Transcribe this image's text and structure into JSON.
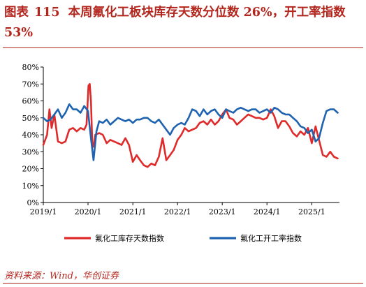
{
  "header": {
    "fig_label": "图表",
    "fig_number": "115",
    "title": "本周氟化工板块库存天数分位数 26%，开工率指数 53%"
  },
  "source": "资料来源：Wind，华创证券",
  "colors": {
    "brand": "#b3261e",
    "series_red": "#e02a2a",
    "series_blue": "#1f63b0"
  },
  "chart_data": {
    "type": "line",
    "title": "",
    "xlabel": "",
    "ylabel": "",
    "ylim": [
      0,
      80
    ],
    "xlim": [
      "2019-01-01",
      "2025-08-15"
    ],
    "y_ticks": [
      "0%",
      "10%",
      "20%",
      "30%",
      "40%",
      "50%",
      "60%",
      "70%",
      "80%"
    ],
    "x_ticks": [
      {
        "label": "2019/1",
        "date": "2019-01-01"
      },
      {
        "label": "2020/1",
        "date": "2020-01-01"
      },
      {
        "label": "2021/1",
        "date": "2021-01-01"
      },
      {
        "label": "2022/1",
        "date": "2022-01-01"
      },
      {
        "label": "2023/1",
        "date": "2023-01-01"
      },
      {
        "label": "2024/1",
        "date": "2024-01-01"
      },
      {
        "label": "2025/1",
        "date": "2025-01-01"
      }
    ],
    "grid": false,
    "legend_position": "bottom",
    "series": [
      {
        "name": "氟化工库存天数指数",
        "color": "#e02a2a",
        "points": [
          [
            "2019-01-01",
            34
          ],
          [
            "2019-02-01",
            40
          ],
          [
            "2019-02-20",
            55
          ],
          [
            "2019-03-10",
            44
          ],
          [
            "2019-04-01",
            52
          ],
          [
            "2019-05-01",
            36
          ],
          [
            "2019-06-01",
            35
          ],
          [
            "2019-07-01",
            36
          ],
          [
            "2019-08-01",
            43
          ],
          [
            "2019-09-01",
            44
          ],
          [
            "2019-10-01",
            42
          ],
          [
            "2019-11-01",
            44
          ],
          [
            "2019-12-01",
            43
          ],
          [
            "2019-12-20",
            46
          ],
          [
            "2020-01-05",
            69
          ],
          [
            "2020-01-15",
            70
          ],
          [
            "2020-01-25",
            60
          ],
          [
            "2020-02-05",
            35
          ],
          [
            "2020-02-15",
            33
          ],
          [
            "2020-03-01",
            40
          ],
          [
            "2020-04-01",
            41
          ],
          [
            "2020-05-01",
            40
          ],
          [
            "2020-06-01",
            35
          ],
          [
            "2020-07-01",
            37
          ],
          [
            "2020-08-01",
            36
          ],
          [
            "2020-09-01",
            35
          ],
          [
            "2020-10-01",
            34
          ],
          [
            "2020-11-01",
            38
          ],
          [
            "2020-12-01",
            34
          ],
          [
            "2021-01-01",
            24
          ],
          [
            "2021-02-01",
            28
          ],
          [
            "2021-03-01",
            25
          ],
          [
            "2021-04-01",
            22
          ],
          [
            "2021-05-01",
            21
          ],
          [
            "2021-06-01",
            23
          ],
          [
            "2021-07-01",
            22
          ],
          [
            "2021-08-01",
            27
          ],
          [
            "2021-09-01",
            38
          ],
          [
            "2021-10-01",
            25
          ],
          [
            "2021-11-01",
            28
          ],
          [
            "2021-12-01",
            31
          ],
          [
            "2022-01-01",
            37
          ],
          [
            "2022-02-01",
            40
          ],
          [
            "2022-03-01",
            44
          ],
          [
            "2022-04-01",
            42
          ],
          [
            "2022-05-01",
            43
          ],
          [
            "2022-06-01",
            44
          ],
          [
            "2022-07-01",
            47
          ],
          [
            "2022-08-01",
            48
          ],
          [
            "2022-09-01",
            46
          ],
          [
            "2022-10-01",
            49
          ],
          [
            "2022-11-01",
            46
          ],
          [
            "2022-12-01",
            48
          ],
          [
            "2023-01-01",
            52
          ],
          [
            "2023-02-01",
            55
          ],
          [
            "2023-03-01",
            50
          ],
          [
            "2023-04-01",
            49
          ],
          [
            "2023-05-01",
            46
          ],
          [
            "2023-06-01",
            48
          ],
          [
            "2023-07-01",
            50
          ],
          [
            "2023-08-01",
            52
          ],
          [
            "2023-09-01",
            51
          ],
          [
            "2023-10-01",
            50
          ],
          [
            "2023-11-01",
            50
          ],
          [
            "2023-12-01",
            49
          ],
          [
            "2024-01-01",
            50
          ],
          [
            "2024-02-01",
            55
          ],
          [
            "2024-03-01",
            51
          ],
          [
            "2024-04-01",
            44
          ],
          [
            "2024-05-01",
            48
          ],
          [
            "2024-06-01",
            48
          ],
          [
            "2024-07-01",
            45
          ],
          [
            "2024-08-01",
            41
          ],
          [
            "2024-09-01",
            39
          ],
          [
            "2024-10-01",
            42
          ],
          [
            "2024-11-01",
            40
          ],
          [
            "2024-12-01",
            44
          ],
          [
            "2025-01-01",
            35
          ],
          [
            "2025-02-01",
            45
          ],
          [
            "2025-03-01",
            37
          ],
          [
            "2025-04-01",
            28
          ],
          [
            "2025-05-01",
            27
          ],
          [
            "2025-06-01",
            30
          ],
          [
            "2025-07-01",
            27
          ],
          [
            "2025-08-01",
            26
          ]
        ]
      },
      {
        "name": "氟化工开工率指数",
        "color": "#1f63b0",
        "points": [
          [
            "2019-01-01",
            50
          ],
          [
            "2019-02-01",
            48
          ],
          [
            "2019-03-01",
            49
          ],
          [
            "2019-04-01",
            52
          ],
          [
            "2019-05-01",
            55
          ],
          [
            "2019-06-01",
            50
          ],
          [
            "2019-07-01",
            53
          ],
          [
            "2019-08-01",
            58
          ],
          [
            "2019-09-01",
            55
          ],
          [
            "2019-10-01",
            55
          ],
          [
            "2019-11-01",
            53
          ],
          [
            "2019-12-01",
            57
          ],
          [
            "2020-01-01",
            54
          ],
          [
            "2020-01-25",
            38
          ],
          [
            "2020-02-15",
            25
          ],
          [
            "2020-03-10",
            42
          ],
          [
            "2020-04-01",
            48
          ],
          [
            "2020-05-01",
            47
          ],
          [
            "2020-06-01",
            49
          ],
          [
            "2020-07-01",
            46
          ],
          [
            "2020-08-01",
            48
          ],
          [
            "2020-09-01",
            50
          ],
          [
            "2020-10-01",
            49
          ],
          [
            "2020-11-01",
            48
          ],
          [
            "2020-12-01",
            49
          ],
          [
            "2021-01-01",
            47
          ],
          [
            "2021-02-01",
            49
          ],
          [
            "2021-03-01",
            49
          ],
          [
            "2021-04-01",
            50
          ],
          [
            "2021-05-01",
            50
          ],
          [
            "2021-06-01",
            48
          ],
          [
            "2021-07-01",
            47
          ],
          [
            "2021-08-01",
            49
          ],
          [
            "2021-09-01",
            46
          ],
          [
            "2021-10-01",
            43
          ],
          [
            "2021-11-01",
            40
          ],
          [
            "2021-12-01",
            44
          ],
          [
            "2022-01-01",
            46
          ],
          [
            "2022-02-01",
            47
          ],
          [
            "2022-03-01",
            46
          ],
          [
            "2022-04-01",
            50
          ],
          [
            "2022-05-01",
            55
          ],
          [
            "2022-06-01",
            54
          ],
          [
            "2022-07-01",
            51
          ],
          [
            "2022-08-01",
            55
          ],
          [
            "2022-09-01",
            52
          ],
          [
            "2022-10-01",
            54
          ],
          [
            "2022-11-01",
            55
          ],
          [
            "2022-12-01",
            52
          ],
          [
            "2023-01-01",
            50
          ],
          [
            "2023-02-01",
            55
          ],
          [
            "2023-03-01",
            54
          ],
          [
            "2023-04-01",
            53
          ],
          [
            "2023-05-01",
            55
          ],
          [
            "2023-06-01",
            56
          ],
          [
            "2023-07-01",
            55
          ],
          [
            "2023-08-01",
            54
          ],
          [
            "2023-09-01",
            55
          ],
          [
            "2023-10-01",
            55
          ],
          [
            "2023-11-01",
            53
          ],
          [
            "2023-12-01",
            54
          ],
          [
            "2024-01-01",
            55
          ],
          [
            "2024-02-01",
            53
          ],
          [
            "2024-03-01",
            56
          ],
          [
            "2024-04-01",
            55
          ],
          [
            "2024-05-01",
            53
          ],
          [
            "2024-06-01",
            52
          ],
          [
            "2024-07-01",
            52
          ],
          [
            "2024-08-01",
            50
          ],
          [
            "2024-09-01",
            48
          ],
          [
            "2024-10-01",
            45
          ],
          [
            "2024-11-01",
            44
          ],
          [
            "2024-12-01",
            41
          ],
          [
            "2025-01-01",
            43
          ],
          [
            "2025-02-01",
            36
          ],
          [
            "2025-03-01",
            38
          ],
          [
            "2025-04-01",
            47
          ],
          [
            "2025-05-01",
            54
          ],
          [
            "2025-06-01",
            55
          ],
          [
            "2025-07-01",
            55
          ],
          [
            "2025-08-01",
            53
          ]
        ]
      }
    ]
  }
}
